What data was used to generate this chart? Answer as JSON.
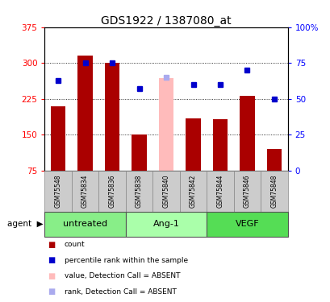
{
  "title": "GDS1922 / 1387080_at",
  "samples": [
    "GSM75548",
    "GSM75834",
    "GSM75836",
    "GSM75838",
    "GSM75840",
    "GSM75842",
    "GSM75844",
    "GSM75846",
    "GSM75848"
  ],
  "bar_values": [
    210,
    315,
    300,
    150,
    268,
    185,
    182,
    232,
    120
  ],
  "bar_colors": [
    "#aa0000",
    "#aa0000",
    "#aa0000",
    "#aa0000",
    "#ffbbbb",
    "#aa0000",
    "#aa0000",
    "#aa0000",
    "#aa0000"
  ],
  "rank_values": [
    63,
    75,
    75,
    57,
    65,
    60,
    60,
    70,
    50
  ],
  "rank_colors": [
    "#0000cc",
    "#0000cc",
    "#0000cc",
    "#0000cc",
    "#aaaaee",
    "#0000cc",
    "#0000cc",
    "#0000cc",
    "#0000cc"
  ],
  "groups": [
    {
      "label": "untreated",
      "start": 0,
      "end": 3,
      "color": "#88ee88"
    },
    {
      "label": "Ang-1",
      "start": 3,
      "end": 6,
      "color": "#aaffaa"
    },
    {
      "label": "VEGF",
      "start": 6,
      "end": 9,
      "color": "#55dd55"
    }
  ],
  "ylim_left": [
    75,
    375
  ],
  "ylim_right": [
    0,
    100
  ],
  "yticks_left": [
    75,
    150,
    225,
    300,
    375
  ],
  "yticks_right": [
    0,
    25,
    50,
    75,
    100
  ],
  "ytick_labels_right": [
    "0",
    "25",
    "50",
    "75",
    "100%"
  ],
  "grid_values": [
    150,
    225,
    300
  ],
  "legend_items": [
    {
      "label": "count",
      "color": "#aa0000"
    },
    {
      "label": "percentile rank within the sample",
      "color": "#0000cc"
    },
    {
      "label": "value, Detection Call = ABSENT",
      "color": "#ffbbbb"
    },
    {
      "label": "rank, Detection Call = ABSENT",
      "color": "#aaaaee"
    }
  ],
  "bar_width": 0.55,
  "background_color": "#ffffff"
}
